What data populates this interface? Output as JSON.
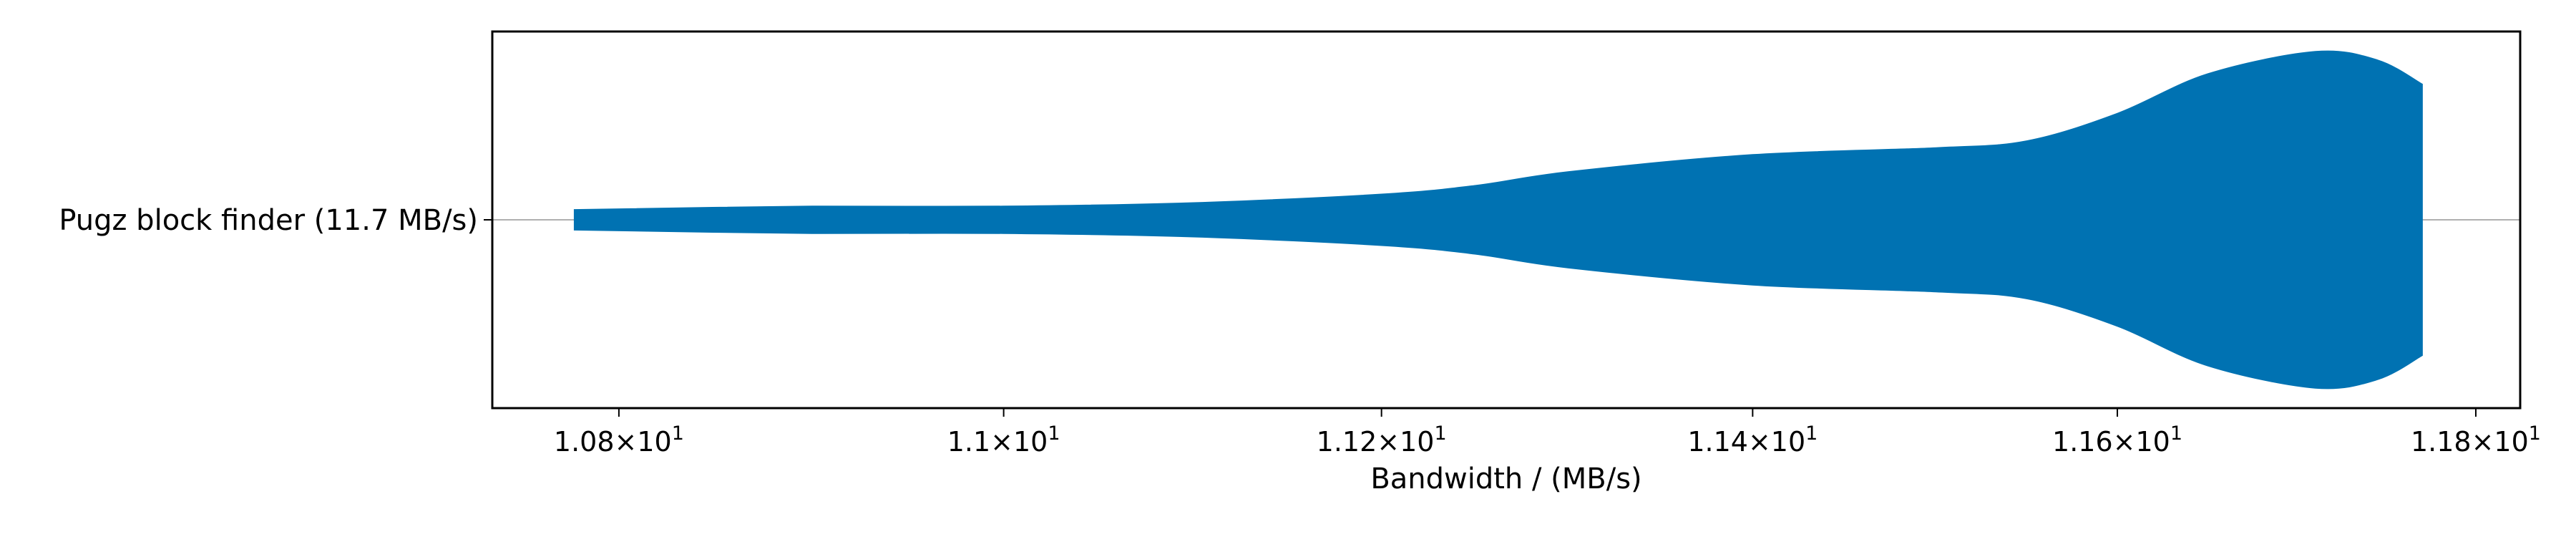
{
  "chart_data": {
    "type": "violin",
    "orientation": "horizontal",
    "categories": [
      "Pugz block finder (11.7 MB/s)"
    ],
    "xlabel": "Bandwidth / (MB/s)",
    "xscale": "log",
    "xlim": [
      10.735,
      11.825
    ],
    "x_ticks": [
      {
        "value": 10.8,
        "mantissa": "1.08",
        "base": "10",
        "exp": "1"
      },
      {
        "value": 11.0,
        "mantissa": "1.1",
        "base": "10",
        "exp": "1"
      },
      {
        "value": 11.2,
        "mantissa": "1.12",
        "base": "10",
        "exp": "1"
      },
      {
        "value": 11.4,
        "mantissa": "1.14",
        "base": "10",
        "exp": "1"
      },
      {
        "value": 11.6,
        "mantissa": "1.16",
        "base": "10",
        "exp": "1"
      },
      {
        "value": 11.8,
        "mantissa": "1.18",
        "base": "10",
        "exp": "1"
      }
    ],
    "violin": {
      "color": "#0072b2",
      "min": 10.777,
      "max": 11.77,
      "density_profile": [
        {
          "x": 10.777,
          "w": 0.06
        },
        {
          "x": 10.9,
          "w": 0.08
        },
        {
          "x": 11.0,
          "w": 0.08
        },
        {
          "x": 11.1,
          "w": 0.1
        },
        {
          "x": 11.2,
          "w": 0.15
        },
        {
          "x": 11.25,
          "w": 0.2
        },
        {
          "x": 11.3,
          "w": 0.28
        },
        {
          "x": 11.4,
          "w": 0.38
        },
        {
          "x": 11.5,
          "w": 0.42
        },
        {
          "x": 11.55,
          "w": 0.46
        },
        {
          "x": 11.6,
          "w": 0.62
        },
        {
          "x": 11.65,
          "w": 0.85
        },
        {
          "x": 11.71,
          "w": 0.98
        },
        {
          "x": 11.745,
          "w": 0.93
        },
        {
          "x": 11.77,
          "w": 0.79
        }
      ]
    },
    "grid": false,
    "legend": "none"
  }
}
